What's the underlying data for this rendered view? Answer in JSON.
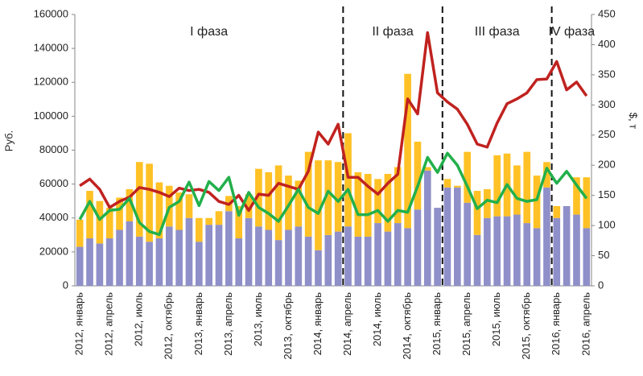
{
  "chart_data": {
    "type": "bar_line",
    "ylabel": "Руб.",
    "y2label": "$, т",
    "categories": [
      "2012, январь",
      null,
      null,
      "2012, апрель",
      null,
      null,
      "2012, июль",
      null,
      null,
      "2012, октябрь",
      null,
      null,
      "2013, январь",
      null,
      null,
      "2013, апрель",
      null,
      null,
      "2013, июль",
      null,
      null,
      "2013, октябрь",
      null,
      null,
      "2014, январь",
      null,
      null,
      "2014, апрель",
      null,
      null,
      "2014, июль",
      null,
      null,
      "2014, октябрь",
      null,
      null,
      "2015, январь",
      null,
      null,
      "2015, апрель",
      null,
      null,
      "2015, июль",
      null,
      null,
      "2015, октябрь",
      null,
      null,
      "2016, январь",
      null,
      null,
      "2016, апрель"
    ],
    "series": [
      {
        "kind": "bar",
        "color": "#8f8fc9",
        "values": [
          23000,
          28000,
          25000,
          28000,
          33000,
          38000,
          29000,
          26000,
          28000,
          35000,
          33000,
          40000,
          26000,
          36000,
          36000,
          44000,
          28000,
          40000,
          35000,
          33000,
          27000,
          33000,
          35000,
          29000,
          21000,
          30000,
          32000,
          35000,
          29000,
          29000,
          37000,
          32000,
          37000,
          34000,
          45000,
          68000,
          46000,
          58000,
          58000,
          49000,
          30000,
          40000,
          41000,
          41000,
          42000,
          37000,
          34000,
          58000,
          40000,
          47000,
          42000,
          34000
        ]
      },
      {
        "kind": "bar",
        "color": "#ffc125",
        "values": [
          16000,
          28000,
          25000,
          18000,
          19000,
          19000,
          44000,
          46000,
          33000,
          24000,
          22000,
          14000,
          14000,
          4000,
          8000,
          9000,
          19000,
          14000,
          34000,
          34000,
          44000,
          32000,
          27000,
          50000,
          53000,
          44000,
          41000,
          55000,
          38000,
          37000,
          26000,
          34000,
          33000,
          91000,
          40000,
          2000,
          0,
          5000,
          1000,
          30000,
          26000,
          17000,
          36000,
          37000,
          29000,
          42000,
          31000,
          15000,
          7000,
          0,
          22000,
          30000
        ]
      },
      {
        "kind": "line",
        "axis": "y2",
        "color": "#c0221f",
        "values": [
          166,
          177,
          160,
          130,
          140,
          147,
          163,
          160,
          155,
          148,
          162,
          158,
          160,
          155,
          140,
          135,
          150,
          125,
          152,
          150,
          170,
          165,
          160,
          190,
          255,
          235,
          268,
          180,
          180,
          165,
          152,
          170,
          185,
          310,
          285,
          420,
          320,
          305,
          293,
          268,
          235,
          230,
          270,
          302,
          310,
          320,
          342,
          343,
          372,
          325,
          338,
          315
        ]
      },
      {
        "kind": "line",
        "axis": "y2",
        "color": "#22b04b",
        "values": [
          110,
          140,
          110,
          125,
          127,
          145,
          105,
          90,
          85,
          130,
          140,
          172,
          133,
          173,
          158,
          180,
          117,
          155,
          130,
          120,
          107,
          133,
          160,
          130,
          120,
          157,
          140,
          160,
          118,
          118,
          125,
          107,
          125,
          122,
          165,
          213,
          188,
          220,
          200,
          165,
          128,
          142,
          138,
          168,
          145,
          140,
          143,
          195,
          170,
          190,
          167,
          145
        ]
      }
    ],
    "phases": [
      {
        "label": "I фаза",
        "start": 0
      },
      {
        "label": "II фаза",
        "start": 27
      },
      {
        "label": "III фаза",
        "start": 37
      },
      {
        "label": "IV фаза",
        "start": 48
      }
    ],
    "ylim": [
      0,
      160000
    ],
    "yticks": [
      0,
      20000,
      40000,
      60000,
      80000,
      100000,
      120000,
      140000,
      160000
    ],
    "y2lim": [
      0,
      450
    ],
    "y2ticks": [
      0,
      50,
      100,
      150,
      200,
      250,
      300,
      350,
      400,
      450
    ]
  }
}
